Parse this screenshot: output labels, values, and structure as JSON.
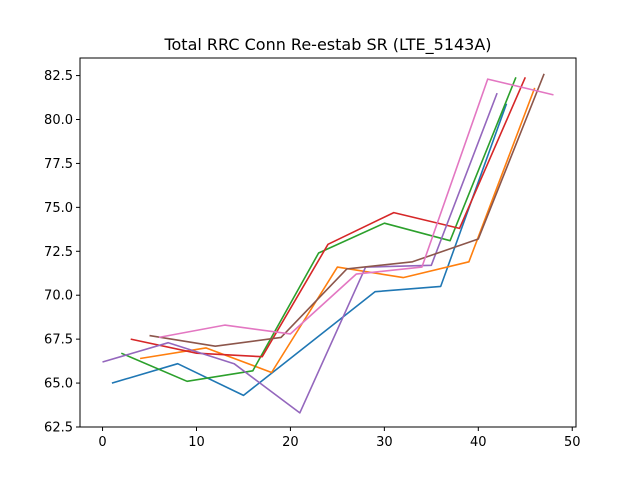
{
  "chart_data": {
    "type": "line",
    "title": "Total RRC Conn Re-estab SR (LTE_5143A)",
    "xlabel": "",
    "ylabel": "",
    "xlim": [
      -2.4,
      50.4
    ],
    "ylim": [
      62.5,
      83.5
    ],
    "xticks": [
      0,
      10,
      20,
      30,
      40,
      50
    ],
    "yticks": [
      62.5,
      65.0,
      67.5,
      70.0,
      72.5,
      75.0,
      77.5,
      80.0,
      82.5
    ],
    "ytick_labels": [
      "62.5",
      "65.0",
      "67.5",
      "70.0",
      "72.5",
      "75.0",
      "77.5",
      "80.0",
      "82.5"
    ],
    "grid": false,
    "legend": "none",
    "series": [
      {
        "color": "#1f77b4",
        "points": [
          [
            1,
            65.0
          ],
          [
            8,
            66.1
          ],
          [
            15,
            64.3
          ],
          [
            29,
            70.2
          ],
          [
            36,
            70.5
          ],
          [
            43,
            80.9
          ]
        ]
      },
      {
        "color": "#ff7f0e",
        "points": [
          [
            4,
            66.4
          ],
          [
            11,
            67.0
          ],
          [
            18,
            65.6
          ],
          [
            25,
            71.6
          ],
          [
            32,
            71.0
          ],
          [
            39,
            71.9
          ],
          [
            46,
            81.8
          ]
        ]
      },
      {
        "color": "#2ca02c",
        "points": [
          [
            2,
            66.7
          ],
          [
            9,
            65.1
          ],
          [
            16,
            65.7
          ],
          [
            23,
            72.4
          ],
          [
            30,
            74.1
          ],
          [
            37,
            73.1
          ],
          [
            44,
            82.4
          ]
        ]
      },
      {
        "color": "#d62728",
        "points": [
          [
            3,
            67.5
          ],
          [
            10,
            66.7
          ],
          [
            17,
            66.5
          ],
          [
            24,
            72.9
          ],
          [
            31,
            74.7
          ],
          [
            38,
            73.8
          ],
          [
            45,
            82.4
          ]
        ]
      },
      {
        "color": "#9467bd",
        "points": [
          [
            0,
            66.2
          ],
          [
            7,
            67.3
          ],
          [
            14,
            66.1
          ],
          [
            21,
            63.3
          ],
          [
            28,
            71.6
          ],
          [
            35,
            71.7
          ],
          [
            42,
            81.5
          ]
        ]
      },
      {
        "color": "#8c564b",
        "points": [
          [
            5,
            67.7
          ],
          [
            12,
            67.1
          ],
          [
            19,
            67.6
          ],
          [
            26,
            71.5
          ],
          [
            33,
            71.9
          ],
          [
            40,
            73.2
          ],
          [
            47,
            82.6
          ]
        ]
      },
      {
        "color": "#e377c2",
        "points": [
          [
            6,
            67.6
          ],
          [
            13,
            68.3
          ],
          [
            20,
            67.8
          ],
          [
            27,
            71.2
          ],
          [
            34,
            71.6
          ],
          [
            41,
            82.3
          ],
          [
            48,
            81.4
          ]
        ]
      }
    ]
  }
}
